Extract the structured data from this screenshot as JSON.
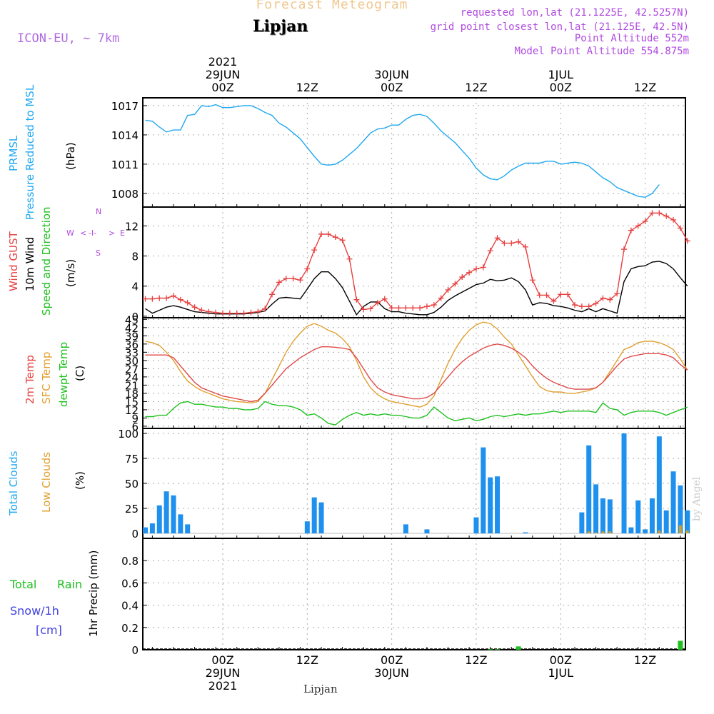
{
  "header": {
    "title": "Forecast Meteogram",
    "station": "Lipjan",
    "model": "ICON-EU, ~ 7km",
    "requested": "requested lon,lat (21.1225E, 42.5257N)",
    "grid_point": "grid point closest lon,lat (21.125E, 42.5N)",
    "point_altitude": "Point Altitude 552m",
    "model_altitude": "Model Point Altitude 554.875m",
    "credit": "by Angel",
    "footer": "Lipjan"
  },
  "time_axis": {
    "ticks": [
      "00Z",
      "12Z",
      "00Z",
      "12Z",
      "00Z",
      "12Z"
    ],
    "dates": [
      "29JUN",
      "",
      "30JUN",
      "",
      "1JUL",
      ""
    ],
    "year": "2021"
  },
  "panel_labels": {
    "pressure": {
      "title": "PRMSL",
      "sub": "Pressure Reduced to MSL",
      "unit": "(hPa)"
    },
    "wind": {
      "gust": "Wind GUST",
      "wind10m": "10m Wind",
      "direction": "Speed and Direction",
      "unit": "(m/s)",
      "compass": {
        "n": "N",
        "s": "S",
        "w": "W",
        "e": "E"
      }
    },
    "temp": {
      "t2m": "2m Temp",
      "sfc": "SFC Temp",
      "dewpt": "dewpt Temp",
      "unit": "(C)"
    },
    "clouds": {
      "total": "Total Clouds",
      "low": "Low Clouds",
      "unit": "(%)"
    },
    "precip": {
      "total": "Total",
      "rain": "Rain",
      "snow": "Snow/1h",
      "snow_unit": "[cm]",
      "axis": "1hr Precip (mm)"
    }
  },
  "colors": {
    "pressure": "#20a8f0",
    "gust": "#e84040",
    "wind": "#000000",
    "t2m": "#e04a4a",
    "sfc": "#e0a030",
    "dewpt": "#20c020",
    "cloud": "#1e90ee",
    "lowcloud": "#c8a030",
    "rain": "#20c020",
    "snow": "#4040e0"
  },
  "chart_data": [
    {
      "type": "line",
      "name": "pressure",
      "ylabel": "(hPa)",
      "ylim": [
        1006.6,
        1017.8
      ],
      "yticks": [
        "1008",
        "1011",
        "1014",
        "1017"
      ],
      "ytick_values": [
        1008,
        1011,
        1014,
        1017
      ],
      "x_hours_from_00Z_29JUN": [
        -11,
        -10,
        -9,
        -8,
        -7,
        -6,
        -5,
        -4,
        -3,
        -2,
        -1,
        0,
        1,
        2,
        3,
        4,
        5,
        6,
        7,
        8,
        9,
        10,
        11,
        12,
        13,
        14,
        15,
        16,
        17,
        18,
        19,
        20,
        21,
        22,
        23,
        24,
        25,
        26,
        27,
        28,
        29,
        30,
        31,
        32,
        33,
        34,
        35,
        36,
        37,
        38,
        39,
        40,
        41,
        42,
        43,
        44,
        45,
        46,
        47,
        48,
        49,
        50,
        51,
        52,
        53,
        54,
        55,
        56,
        57,
        58,
        59,
        60,
        61,
        62,
        63,
        64,
        65
      ],
      "values": [
        1015.5,
        1015.4,
        1014.8,
        1014.3,
        1014.5,
        1014.5,
        1016.0,
        1016.1,
        1017.0,
        1016.9,
        1017.1,
        1016.8,
        1016.8,
        1016.9,
        1017.0,
        1017.0,
        1016.7,
        1016.3,
        1016.0,
        1015.2,
        1014.8,
        1014.2,
        1013.6,
        1012.7,
        1011.8,
        1011.0,
        1010.9,
        1011.0,
        1011.4,
        1012.0,
        1012.6,
        1013.4,
        1014.2,
        1014.6,
        1014.7,
        1015.0,
        1015.0,
        1015.6,
        1016.0,
        1016.1,
        1015.9,
        1015.2,
        1014.4,
        1013.8,
        1013.2,
        1012.4,
        1011.6,
        1010.6,
        1009.9,
        1009.5,
        1009.4,
        1009.8,
        1010.4,
        1010.8,
        1011.1,
        1011.1,
        1011.1,
        1011.3,
        1011.3,
        1011.0,
        1011.1,
        1011.2,
        1011.1,
        1010.8,
        1010.2,
        1009.6,
        1009.2,
        1008.6,
        1008.3,
        1008.0,
        1007.7,
        1007.6,
        1008.0,
        1008.9
      ]
    },
    {
      "type": "line",
      "name": "wind",
      "ylabel": "(m/s)",
      "ylim": [
        -0.2,
        14.5
      ],
      "yticks": [
        "0",
        "4",
        "8",
        "12"
      ],
      "ytick_values": [
        0,
        4,
        8,
        12
      ],
      "series": [
        {
          "name": "Wind GUST",
          "values": [
            2.3,
            2.3,
            2.4,
            2.4,
            2.7,
            2.2,
            1.8,
            1.2,
            0.8,
            0.6,
            0.5,
            0.4,
            0.4,
            0.4,
            0.4,
            0.5,
            0.6,
            1.0,
            2.9,
            4.5,
            5.0,
            5.0,
            4.8,
            6.3,
            8.8,
            10.9,
            10.9,
            10.5,
            10.1,
            7.6,
            2.2,
            0.9,
            1.0,
            1.8,
            2.3,
            1.1,
            1.1,
            1.1,
            1.1,
            1.1,
            1.3,
            1.5,
            2.4,
            3.5,
            4.3,
            5.2,
            5.8,
            6.3,
            6.5,
            8.7,
            10.4,
            9.7,
            9.7,
            9.9,
            9.2,
            4.8,
            2.8,
            2.8,
            2.0,
            2.9,
            2.9,
            1.5,
            1.3,
            1.3,
            1.7,
            2.4,
            2.2,
            3.0,
            8.9,
            11.4,
            12.0,
            12.6,
            13.7,
            13.7,
            13.3,
            12.8,
            11.7,
            10.0
          ]
        },
        {
          "name": "10m Wind",
          "values": [
            1.0,
            0.4,
            0.8,
            1.2,
            1.4,
            1.2,
            0.9,
            0.6,
            0.5,
            0.4,
            0.3,
            0.3,
            0.3,
            0.3,
            0.3,
            0.4,
            0.5,
            0.7,
            1.6,
            2.4,
            2.5,
            2.4,
            2.3,
            3.6,
            5.0,
            5.9,
            5.9,
            5.0,
            3.8,
            2.0,
            0.2,
            1.3,
            1.9,
            1.9,
            1.0,
            0.6,
            0.6,
            0.4,
            0.3,
            0.2,
            0.2,
            0.5,
            1.2,
            2.1,
            2.7,
            3.2,
            3.7,
            4.2,
            4.4,
            4.9,
            4.7,
            4.8,
            5.1,
            4.6,
            3.5,
            1.5,
            1.8,
            1.7,
            1.4,
            1.3,
            1.1,
            0.8,
            0.6,
            1.0,
            0.6,
            1.0,
            0.7,
            0.4,
            4.6,
            6.3,
            6.6,
            6.7,
            7.2,
            7.3,
            7.0,
            6.3,
            5.1,
            4.0
          ]
        }
      ]
    },
    {
      "type": "line",
      "name": "temperature",
      "ylabel": "(C)",
      "ylim": [
        5.2,
        45.6
      ],
      "yticks": [
        "6",
        "9",
        "12",
        "15",
        "18",
        "21",
        "24",
        "27",
        "30",
        "33",
        "36",
        "39",
        "42",
        "45"
      ],
      "ytick_values": [
        6,
        9,
        12,
        15,
        18,
        21,
        24,
        27,
        30,
        33,
        36,
        39,
        42,
        45
      ],
      "series": [
        {
          "name": "2m Temp",
          "values": [
            32,
            32,
            32,
            32,
            31,
            28,
            25,
            22,
            20,
            19,
            18,
            17,
            16.5,
            16,
            15.5,
            15,
            15.5,
            18,
            21,
            24,
            27,
            29,
            31,
            32.5,
            34,
            35,
            35,
            34.8,
            34.5,
            34,
            31,
            27,
            23,
            20,
            18.5,
            17.5,
            17,
            16.5,
            16,
            16,
            16.5,
            18,
            21,
            24,
            27,
            29.5,
            31.5,
            33,
            34.5,
            35.5,
            36,
            35.5,
            34.5,
            33,
            31,
            28,
            25.5,
            23.5,
            22,
            21,
            20,
            19.5,
            19.5,
            19.5,
            20,
            22,
            25,
            28,
            30.5,
            31.5,
            32,
            32.5,
            32.5,
            32.5,
            32,
            31,
            28.5,
            26.5
          ]
        },
        {
          "name": "SFC Temp",
          "values": [
            37,
            36.5,
            35.5,
            33,
            30,
            26,
            22.5,
            20.5,
            19,
            18,
            17,
            16,
            15.5,
            15,
            14.8,
            14.5,
            15,
            18,
            23,
            28,
            33,
            37,
            40,
            42.5,
            43.5,
            42.5,
            41,
            40,
            38,
            35,
            30,
            24,
            20,
            17.5,
            16,
            15,
            14.5,
            14,
            13.5,
            13,
            14,
            17,
            23,
            29,
            34,
            38,
            41,
            43,
            44,
            43.5,
            41.5,
            38.5,
            36,
            32,
            28,
            24,
            20.5,
            19,
            18.5,
            18.5,
            18,
            18,
            18.5,
            19,
            20,
            22,
            26,
            30,
            34,
            35,
            36.5,
            37,
            37,
            36.5,
            35.5,
            34,
            30.5,
            26.5
          ]
        },
        {
          "name": "dewpt Temp",
          "values": [
            9.5,
            9.5,
            10,
            10,
            12.5,
            14.5,
            15,
            14,
            14,
            13.5,
            13,
            13,
            12.5,
            12.5,
            12,
            12,
            12.5,
            15,
            14,
            13.5,
            13.5,
            13,
            12,
            10,
            10.5,
            9,
            7,
            6.5,
            8.5,
            10,
            11,
            10,
            10.5,
            10,
            10.5,
            10,
            10,
            9.5,
            9,
            9,
            10,
            13,
            11,
            9,
            8,
            8.5,
            9,
            8,
            8.5,
            9.5,
            10,
            9.5,
            10,
            10.5,
            10,
            10.5,
            10.5,
            11,
            11.5,
            11,
            11.5,
            11.5,
            11.5,
            11.5,
            11,
            14.5,
            12.5,
            12,
            10,
            11,
            11.5,
            11.5,
            11.5,
            11,
            10,
            11,
            12,
            13
          ]
        }
      ]
    },
    {
      "type": "bar",
      "name": "clouds",
      "ylabel": "(%)",
      "ylim": [
        -5,
        105
      ],
      "yticks": [
        "0",
        "25",
        "50",
        "75",
        "100"
      ],
      "ytick_values": [
        0,
        25,
        50,
        75,
        100
      ],
      "series": [
        {
          "name": "Total Clouds",
          "values": [
            6,
            10,
            28,
            42,
            38,
            19,
            9,
            0,
            0,
            0,
            0,
            0,
            0,
            0,
            0,
            0,
            0,
            0,
            0,
            0,
            0,
            0,
            0,
            12,
            36,
            31,
            0,
            0,
            0,
            0,
            0,
            0,
            0,
            0,
            0,
            0,
            0,
            9,
            0,
            0,
            4,
            0,
            0,
            0,
            0,
            0,
            0,
            16,
            86,
            56,
            57,
            0,
            0,
            0,
            1,
            0,
            0,
            0,
            0,
            0,
            0,
            0,
            21,
            88,
            49,
            35,
            34,
            0,
            100,
            6,
            33,
            4,
            35,
            97,
            23,
            62,
            48,
            23
          ]
        },
        {
          "name": "Low Clouds",
          "values": [
            0,
            0,
            0,
            0,
            0,
            0,
            0,
            0,
            0,
            0,
            0,
            0,
            0,
            0,
            0,
            0,
            0,
            0,
            0,
            0,
            0,
            0,
            0,
            0,
            0,
            0,
            0,
            0,
            0,
            0,
            0,
            0,
            0,
            0,
            0,
            0,
            0,
            0,
            0,
            0,
            0,
            0,
            0,
            0,
            0,
            0,
            0,
            0,
            0,
            0,
            0,
            0,
            0,
            0,
            0,
            0,
            0,
            0,
            0,
            0,
            0,
            0,
            0,
            2,
            1,
            2,
            2,
            0,
            0,
            0,
            0,
            0,
            0,
            3,
            0,
            0,
            8,
            3
          ]
        }
      ]
    },
    {
      "type": "bar",
      "name": "precipitation",
      "ylabel": "1hr Precip (mm)",
      "ylim": [
        0,
        1.0
      ],
      "yticks": [
        "0",
        "0.2",
        "0.4",
        "0.6",
        "0.8"
      ],
      "ytick_values": [
        0,
        0.2,
        0.4,
        0.6,
        0.8
      ],
      "series": [
        {
          "name": "Rain",
          "values": [
            0,
            0,
            0,
            0,
            0,
            0,
            0,
            0,
            0,
            0,
            0,
            0,
            0,
            0,
            0,
            0,
            0,
            0,
            0,
            0,
            0,
            0,
            0,
            0,
            0,
            0,
            0,
            0,
            0,
            0,
            0,
            0,
            0,
            0,
            0,
            0,
            0,
            0,
            0,
            0,
            0,
            0,
            0,
            0,
            0,
            0,
            0,
            0,
            0,
            0.005,
            0.005,
            0,
            0,
            0.03,
            0,
            0,
            0,
            0,
            0,
            0,
            0,
            0,
            0,
            0,
            0,
            0,
            0,
            0,
            0,
            0,
            0,
            0,
            0,
            0,
            0,
            0,
            0.08,
            0
          ]
        }
      ]
    }
  ]
}
